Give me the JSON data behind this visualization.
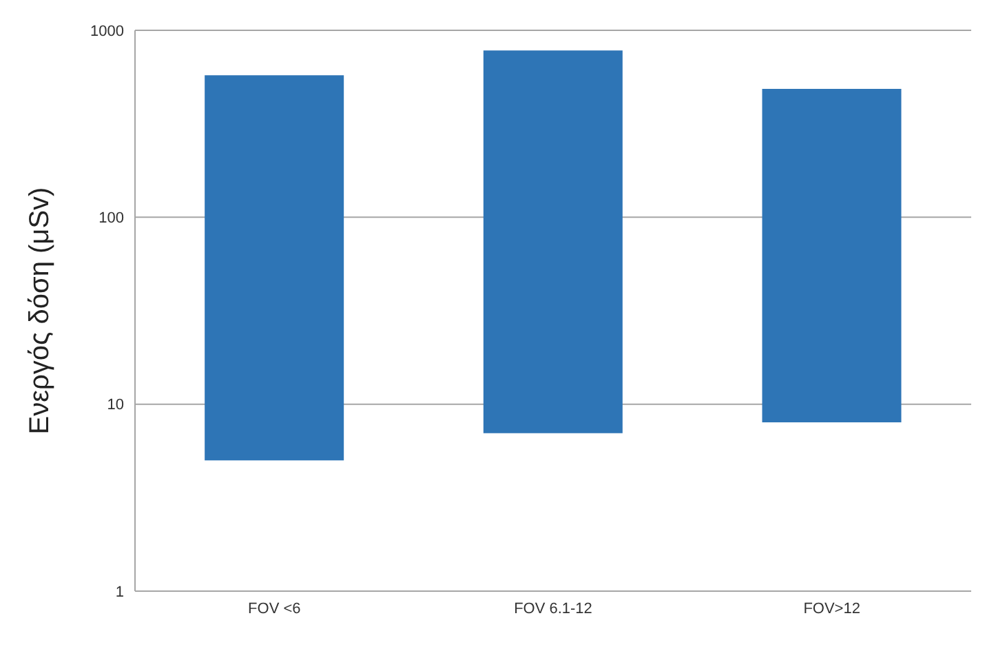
{
  "chart_data": {
    "type": "bar",
    "ylabel": "Ενεργός δόση (μSv)",
    "categories": [
      "FOV <6",
      "FOV 6.1-12",
      "FOV>12"
    ],
    "series": [
      {
        "color": "#2e75b6",
        "values": [
          570,
          773,
          478
        ],
        "base": [
          5,
          7,
          8
        ]
      }
    ],
    "log": "y",
    "ylim": [
      1,
      1000
    ],
    "yticks": [
      1,
      10,
      100,
      1000
    ],
    "grid": "y",
    "legend": false
  }
}
